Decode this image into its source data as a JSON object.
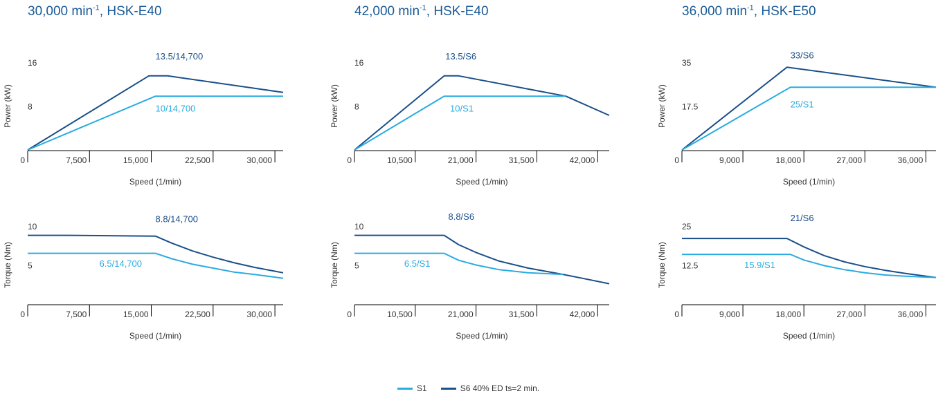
{
  "colors": {
    "s1": "#29abe2",
    "s6": "#1a4f8a",
    "title": "#1a5a96",
    "axis": "#000000",
    "text": "#333333"
  },
  "columns": [
    {
      "title_main": "30,000 min",
      "title_sup": "-1",
      "title_rest": ", HSK-E40"
    },
    {
      "title_main": "42,000 min",
      "title_sup": "-1",
      "title_rest": ", HSK-E40"
    },
    {
      "title_main": "36,000 min",
      "title_sup": "-1",
      "title_rest": ", HSK-E50"
    }
  ],
  "legend": {
    "s1": "S1",
    "s6": "S6 40% ED ts=2 min."
  },
  "chart_data": [
    {
      "type": "line",
      "xlabel": "Speed (1/min)",
      "ylabel": "Power (kW)",
      "xlim": [
        0,
        31000
      ],
      "ylim": [
        0,
        16
      ],
      "xticks": [
        "0",
        "7,500",
        "15,000",
        "22,500",
        "30,000"
      ],
      "xtick_values": [
        0,
        7500,
        15000,
        22500,
        30000
      ],
      "yticks": [
        "16",
        "8"
      ],
      "ytick_values": [
        16,
        8
      ],
      "series": [
        {
          "key": "s6",
          "x": [
            0,
            14700,
            17000,
            31000
          ],
          "y": [
            0,
            13.5,
            13.5,
            10.5
          ]
        },
        {
          "key": "s1",
          "x": [
            0,
            15500,
            31000
          ],
          "y": [
            0,
            9.8,
            9.8
          ]
        }
      ],
      "annotations": [
        {
          "text": "13.5/14,700",
          "series": "s6",
          "x": 15500,
          "y": 16.5,
          "anchor": "start"
        },
        {
          "text": "10/14,700",
          "series": "s1",
          "x": 15500,
          "y": 7,
          "anchor": "start"
        }
      ]
    },
    {
      "type": "line",
      "xlabel": "Speed (1/min)",
      "ylabel": "Torque (Nm)",
      "xlim": [
        0,
        31000
      ],
      "ylim": [
        0,
        10
      ],
      "xticks": [
        "0",
        "7,500",
        "15,000",
        "22,500",
        "30,000"
      ],
      "xtick_values": [
        0,
        7500,
        15000,
        22500,
        30000
      ],
      "yticks": [
        "10",
        "5"
      ],
      "ytick_values": [
        10,
        5
      ],
      "series": [
        {
          "key": "s6",
          "x": [
            0,
            5000,
            15500,
            17500,
            20000,
            22500,
            25000,
            27500,
            30000,
            31000
          ],
          "y": [
            8.8,
            8.8,
            8.7,
            7.8,
            6.8,
            6.0,
            5.3,
            4.7,
            4.2,
            4.0
          ]
        },
        {
          "key": "s1",
          "x": [
            0,
            15500,
            17500,
            20000,
            22500,
            25000,
            27500,
            31000
          ],
          "y": [
            6.5,
            6.5,
            5.8,
            5.1,
            4.6,
            4.1,
            3.8,
            3.3
          ]
        }
      ],
      "annotations": [
        {
          "text": "8.8/14,700",
          "series": "s6",
          "x": 15500,
          "y": 10.5,
          "anchor": "start"
        },
        {
          "text": "6.5/14,700",
          "series": "s1",
          "x": 8700,
          "y": 4.8,
          "anchor": "start"
        }
      ]
    },
    {
      "type": "line",
      "xlabel": "Speed (1/min)",
      "ylabel": "Power (kW)",
      "xlim": [
        0,
        44000
      ],
      "ylim": [
        0,
        16
      ],
      "xticks": [
        "0",
        "10,500",
        "21,000",
        "31,500",
        "42,000"
      ],
      "xtick_values": [
        0,
        10500,
        21000,
        31500,
        42000
      ],
      "yticks": [
        "16",
        "8"
      ],
      "ytick_values": [
        16,
        8
      ],
      "series": [
        {
          "key": "s6",
          "x": [
            0,
            15500,
            18000,
            36500,
            44000
          ],
          "y": [
            0,
            13.5,
            13.5,
            9.8,
            6.3
          ]
        },
        {
          "key": "s1",
          "x": [
            0,
            15500,
            36500
          ],
          "y": [
            0,
            9.8,
            9.8
          ]
        }
      ],
      "annotations": [
        {
          "text": "13.5/S6",
          "series": "s6",
          "x": 15700,
          "y": 16.5,
          "anchor": "start"
        },
        {
          "text": "10/S1",
          "series": "s1",
          "x": 16500,
          "y": 7,
          "anchor": "start"
        }
      ]
    },
    {
      "type": "line",
      "xlabel": "Speed (1/min)",
      "ylabel": "Torque (Nm)",
      "xlim": [
        0,
        44000
      ],
      "ylim": [
        0,
        10
      ],
      "xticks": [
        "0",
        "10,500",
        "21,000",
        "31,500",
        "42,000"
      ],
      "xtick_values": [
        0,
        10500,
        21000,
        31500,
        42000
      ],
      "yticks": [
        "10",
        "5"
      ],
      "ytick_values": [
        10,
        5
      ],
      "series": [
        {
          "key": "s6",
          "x": [
            0,
            15500,
            18000,
            21000,
            25000,
            30000,
            36000,
            40000,
            44000
          ],
          "y": [
            8.8,
            8.8,
            7.6,
            6.6,
            5.5,
            4.6,
            3.8,
            3.2,
            2.6
          ]
        },
        {
          "key": "s1",
          "x": [
            0,
            15500,
            18000,
            21000,
            25000,
            30000,
            36000
          ],
          "y": [
            6.5,
            6.5,
            5.6,
            5.0,
            4.4,
            4.0,
            3.8
          ]
        }
      ],
      "annotations": [
        {
          "text": "8.8/S6",
          "series": "s6",
          "x": 16200,
          "y": 10.8,
          "anchor": "start"
        },
        {
          "text": "6.5/S1",
          "series": "s1",
          "x": 8600,
          "y": 4.8,
          "anchor": "start"
        }
      ]
    },
    {
      "type": "line",
      "xlabel": "Speed (1/min)",
      "ylabel": "Power (kW)",
      "xlim": [
        0,
        37500
      ],
      "ylim": [
        0,
        35
      ],
      "xticks": [
        "0",
        "9,000",
        "18,000",
        "27,000",
        "36,000"
      ],
      "xtick_values": [
        0,
        9000,
        18000,
        27000,
        36000
      ],
      "yticks": [
        "35",
        "17.5"
      ],
      "ytick_values": [
        35,
        17.5
      ],
      "series": [
        {
          "key": "s6",
          "x": [
            0,
            15500,
            37500
          ],
          "y": [
            0,
            33,
            25
          ]
        },
        {
          "key": "s1",
          "x": [
            0,
            16000,
            37500
          ],
          "y": [
            0,
            25,
            25
          ]
        }
      ],
      "annotations": [
        {
          "text": "33/S6",
          "series": "s6",
          "x": 16000,
          "y": 36.5,
          "anchor": "start"
        },
        {
          "text": "25/S1",
          "series": "s1",
          "x": 16000,
          "y": 17,
          "anchor": "start"
        }
      ]
    },
    {
      "type": "line",
      "xlabel": "Speed (1/min)",
      "ylabel": "Torque (Nm)",
      "xlim": [
        0,
        37500
      ],
      "ylim": [
        0,
        25
      ],
      "xticks": [
        "0",
        "9,000",
        "18,000",
        "27,000",
        "36,000"
      ],
      "xtick_values": [
        0,
        9000,
        18000,
        27000,
        36000
      ],
      "yticks": [
        "25",
        "12.5"
      ],
      "ytick_values": [
        25,
        12.5
      ],
      "series": [
        {
          "key": "s6",
          "x": [
            0,
            15500,
            18000,
            21000,
            24000,
            27000,
            30000,
            33000,
            37500
          ],
          "y": [
            21,
            21,
            18.3,
            15.5,
            13.5,
            12.0,
            10.8,
            9.8,
            8.5
          ]
        },
        {
          "key": "s1",
          "x": [
            0,
            16000,
            18000,
            21000,
            24000,
            27000,
            30000,
            33000,
            37500
          ],
          "y": [
            15.9,
            15.9,
            14.1,
            12.3,
            11.0,
            10.0,
            9.3,
            8.9,
            8.5
          ]
        }
      ],
      "annotations": [
        {
          "text": "21/S6",
          "series": "s6",
          "x": 16000,
          "y": 26.5,
          "anchor": "start"
        },
        {
          "text": "15.9/S1",
          "series": "s1",
          "x": 9200,
          "y": 11.5,
          "anchor": "start"
        }
      ]
    }
  ]
}
